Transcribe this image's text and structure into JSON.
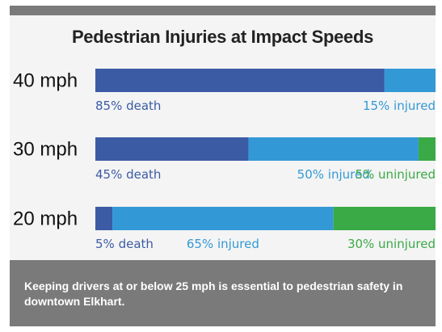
{
  "chart_data": {
    "type": "bar",
    "stacked": true,
    "orientation": "horizontal",
    "title": "Pedestrian Injuries at Impact Speeds",
    "categories": [
      "40 mph",
      "30 mph",
      "20 mph"
    ],
    "xlim": [
      0,
      100
    ],
    "series": [
      {
        "key": "death",
        "color": "#3b5ba5",
        "values": [
          85,
          45,
          5
        ],
        "labels": [
          "85% death",
          "45% death",
          "5% death"
        ]
      },
      {
        "key": "injured",
        "color": "#3399d6",
        "values": [
          15,
          50,
          65
        ],
        "labels": [
          "15% injured",
          "50% injured",
          "65% injured"
        ]
      },
      {
        "key": "uninjured",
        "color": "#3aaa46",
        "values": [
          0,
          5,
          30
        ],
        "labels": [
          "",
          "5% uninjured",
          "30% uninjured"
        ]
      }
    ]
  },
  "caption": "Keeping drivers at or below 25 mph is essential to pedestrian safety in downtown Elkhart."
}
